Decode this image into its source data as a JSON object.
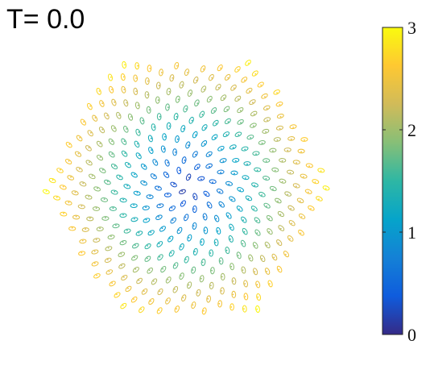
{
  "chart_data": {
    "type": "scatter",
    "title": "T=  0.0",
    "xlabel": "",
    "ylabel": "",
    "description_shape": "hexagonal spiral lattice of ellipse markers colored by radial distance",
    "grid": false,
    "colorbar": {
      "colormap": "parula",
      "range": [
        0,
        3
      ],
      "ticks": [
        {
          "value": 0,
          "label": "0"
        },
        {
          "value": 1,
          "label": "1"
        },
        {
          "value": 2,
          "label": "2"
        },
        {
          "value": 3,
          "label": "3"
        }
      ],
      "colors": [
        "#352a87",
        "#0f5cdd",
        "#1481d6",
        "#06a4ca",
        "#2eb7a4",
        "#87bf77",
        "#d1bb59",
        "#fec832",
        "#f9fb0e"
      ]
    },
    "points": {
      "count_approx": 560,
      "color_value_range": [
        0,
        3
      ]
    }
  }
}
